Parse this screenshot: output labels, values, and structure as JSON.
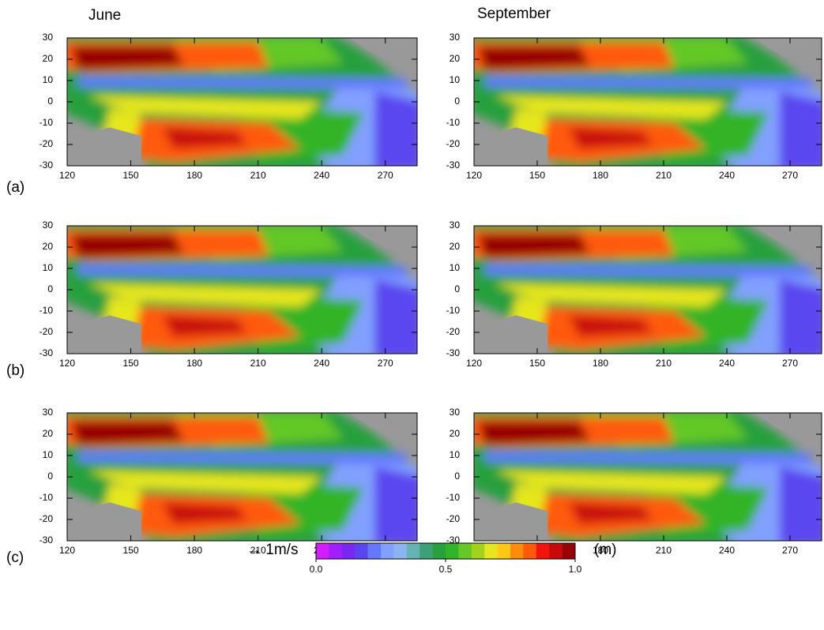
{
  "columns": [
    "June",
    "September"
  ],
  "rows": [
    "(a)",
    "(b)",
    "(c)"
  ],
  "xaxis": {
    "xlim": [
      120,
      285
    ],
    "xticks": [
      120,
      150,
      180,
      210,
      240,
      270
    ]
  },
  "yaxis": {
    "ylim": [
      -30,
      30
    ],
    "yticks": [
      30,
      20,
      10,
      0,
      -10,
      -20,
      -30
    ]
  },
  "colorbar": {
    "colors": [
      "#d21eff",
      "#a01eff",
      "#7828f0",
      "#5a46f0",
      "#6478ff",
      "#82a0ff",
      "#8cb4f0",
      "#64b4b4",
      "#3ca078",
      "#28a03c",
      "#32b428",
      "#64c828",
      "#a0d21e",
      "#e6e61e",
      "#ffc814",
      "#ff8c0a",
      "#ff5a0a",
      "#f0140a",
      "#c80a0a",
      "#960505"
    ],
    "lim": [
      0,
      1
    ],
    "ticks": [
      {
        "value": 0,
        "label": "0.0"
      },
      0.5,
      {
        "value": 1,
        "label": "1.0"
      }
    ],
    "unit": "(m)"
  },
  "vector_key": "→ 1m/s"
}
